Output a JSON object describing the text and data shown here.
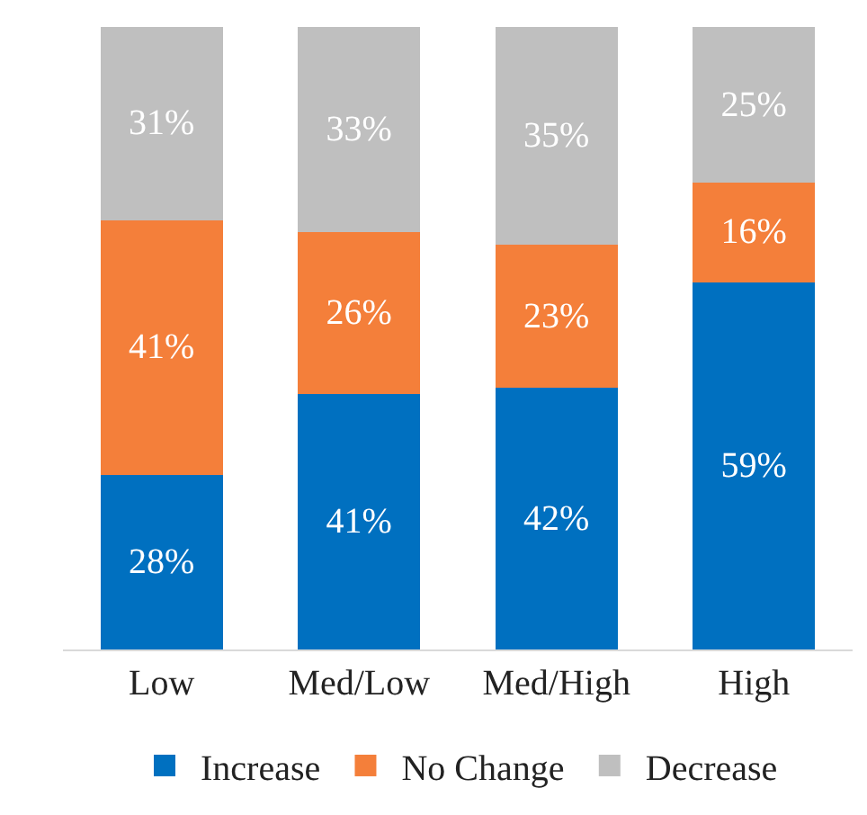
{
  "chart_data": {
    "type": "bar",
    "stacked": true,
    "categories": [
      "Low",
      "Med/Low",
      "Med/High",
      "High"
    ],
    "ylim": [
      0,
      100
    ],
    "tick_labels": "x",
    "grid": false,
    "legend": "bottom",
    "series": [
      {
        "name": "Increase",
        "color": "#0070c0",
        "values": [
          28,
          41,
          42,
          59
        ],
        "value_labels": [
          "28%",
          "41%",
          "42%",
          "59%"
        ]
      },
      {
        "name": "No Change",
        "color": "#f47f3a",
        "values": [
          41,
          26,
          23,
          16
        ],
        "value_labels": [
          "41%",
          "26%",
          "23%",
          "16%"
        ]
      },
      {
        "name": "Decrease",
        "color": "#bfbfbf",
        "values": [
          31,
          33,
          35,
          25
        ],
        "value_labels": [
          "31%",
          "33%",
          "35%",
          "25%"
        ]
      }
    ]
  }
}
